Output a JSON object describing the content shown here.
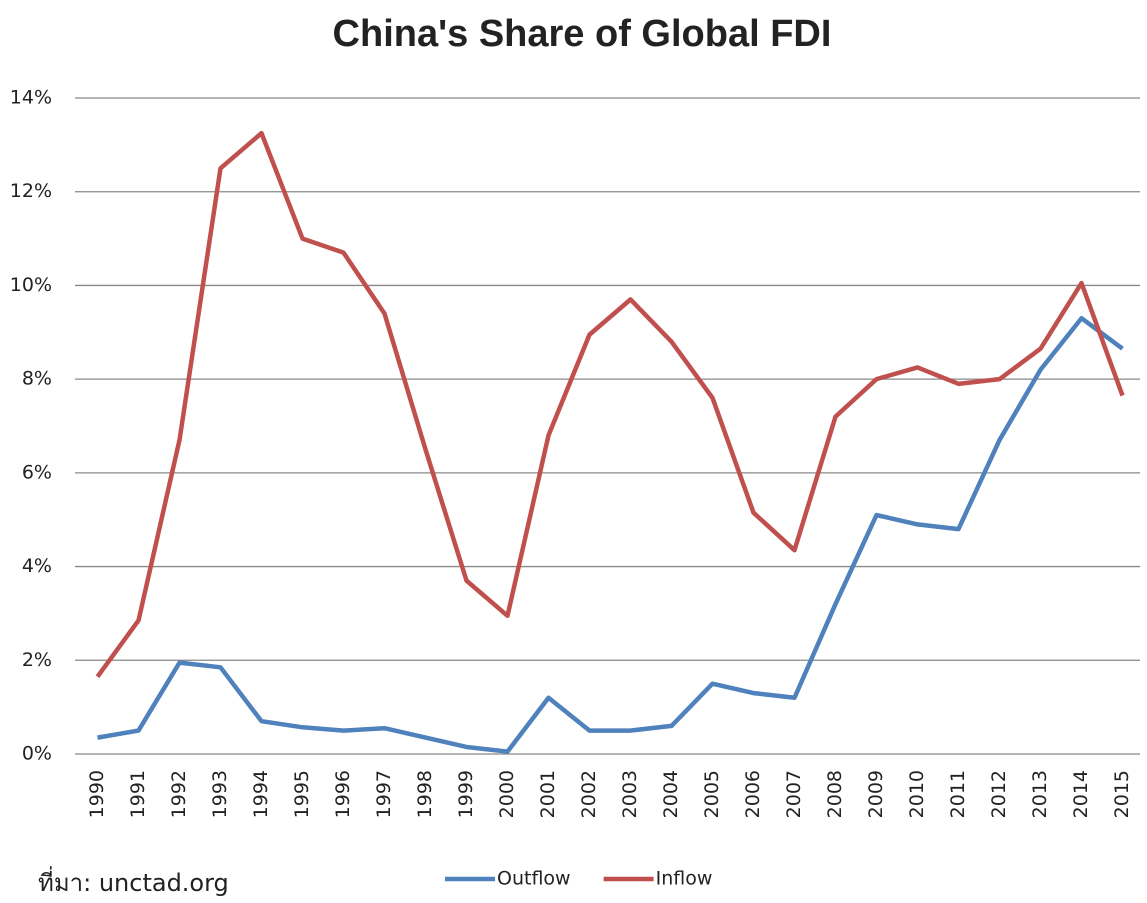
{
  "chart_data": {
    "type": "line",
    "title": "China's Share of Global FDI",
    "categories": [
      "1990",
      "1991",
      "1992",
      "1993",
      "1994",
      "1995",
      "1996",
      "1997",
      "1998",
      "1999",
      "2000",
      "2001",
      "2002",
      "2003",
      "2004",
      "2005",
      "2006",
      "2007",
      "2008",
      "2009",
      "2010",
      "2011",
      "2012",
      "2013",
      "2014",
      "2015"
    ],
    "series": [
      {
        "name": "Outflow",
        "color": "#4f81bd",
        "values": [
          0.35,
          0.5,
          1.95,
          1.85,
          0.7,
          0.57,
          0.5,
          0.55,
          0.35,
          0.15,
          0.05,
          1.2,
          0.5,
          0.5,
          0.6,
          1.5,
          1.3,
          1.2,
          3.2,
          5.1,
          4.9,
          4.8,
          6.7,
          8.2,
          9.3,
          8.65
        ]
      },
      {
        "name": "Inflow",
        "color": "#c0504d",
        "values": [
          1.65,
          2.85,
          6.7,
          12.5,
          13.25,
          11.0,
          10.7,
          9.4,
          6.5,
          3.7,
          2.95,
          6.8,
          8.95,
          9.7,
          8.8,
          7.6,
          5.15,
          4.35,
          7.2,
          8.0,
          8.25,
          7.9,
          8.0,
          8.65,
          10.05,
          7.65
        ]
      }
    ],
    "ylim": [
      0,
      14
    ],
    "yticks": [
      {
        "value": 0,
        "label": "0%"
      },
      {
        "value": 2,
        "label": "2%"
      },
      {
        "value": 4,
        "label": "4%"
      },
      {
        "value": 6,
        "label": "6%"
      },
      {
        "value": 8,
        "label": "8%"
      },
      {
        "value": 10,
        "label": "10%"
      },
      {
        "value": 12,
        "label": "12%"
      },
      {
        "value": 14,
        "label": "14%"
      }
    ],
    "grid": true,
    "legend": "bottom",
    "source": "ที่มา: unctad.org"
  }
}
